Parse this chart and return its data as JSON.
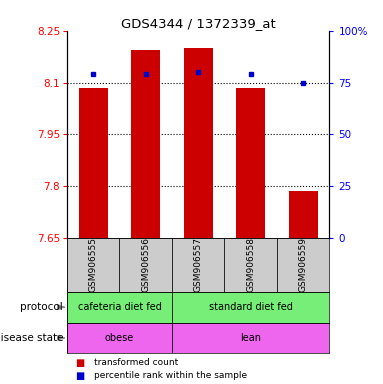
{
  "title": "GDS4344 / 1372339_at",
  "samples": [
    "GSM906555",
    "GSM906556",
    "GSM906557",
    "GSM906558",
    "GSM906559"
  ],
  "bar_values": [
    8.085,
    8.195,
    8.2,
    8.085,
    7.785
  ],
  "percentile_values": [
    79,
    79,
    80,
    79,
    75
  ],
  "ylim": [
    7.65,
    8.25
  ],
  "y_ticks": [
    7.65,
    7.8,
    7.95,
    8.1,
    8.25
  ],
  "y_ticklabels": [
    "7.65",
    "7.8",
    "7.95",
    "8.1",
    "8.25"
  ],
  "right_ylim": [
    0,
    100
  ],
  "right_ticks": [
    0,
    25,
    50,
    75,
    100
  ],
  "right_ticklabels": [
    "0",
    "25",
    "50",
    "75",
    "100%"
  ],
  "dotted_lines": [
    7.8,
    7.95,
    8.1
  ],
  "bar_color": "#cc0000",
  "percentile_color": "#0000cc",
  "bar_width": 0.55,
  "protocol_labels": [
    [
      "cafeteria diet fed",
      0,
      1
    ],
    [
      "standard diet fed",
      2,
      4
    ]
  ],
  "disease_labels": [
    [
      "obese",
      0,
      1
    ],
    [
      "lean",
      2,
      4
    ]
  ],
  "protocol_color": "#77ee77",
  "disease_color": "#ee66ee",
  "sample_bg_color": "#cccccc",
  "legend_items": [
    {
      "color": "#cc0000",
      "label": "transformed count"
    },
    {
      "color": "#0000cc",
      "label": "percentile rank within the sample"
    }
  ]
}
